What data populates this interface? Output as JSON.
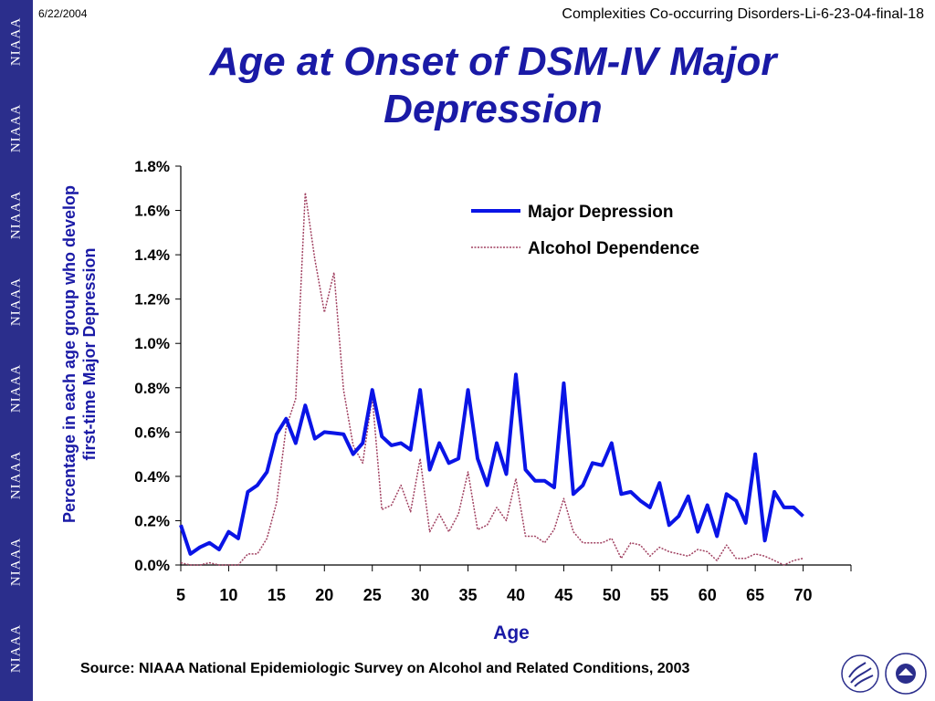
{
  "header": {
    "date": "6/22/2004",
    "slide_id": "Complexities Co-occurring Disorders-Li-6-23-04-final-18",
    "title_line1": "Age at Onset of DSM-IV Major",
    "title_line2": "Depression"
  },
  "sidebar": {
    "marks": [
      "NIAAA",
      "NIAAA",
      "NIAAA",
      "NIAAA",
      "NIAAA",
      "NIAAA",
      "NIAAA",
      "NIAAA"
    ],
    "color": "#2b2e8c"
  },
  "footer": {
    "source": "Source: NIAAA National Epidemiologic Survey on Alcohol and Related Conditions, 2003",
    "logos": [
      "hhs-eagle-logo",
      "nih-logo"
    ]
  },
  "chart_data": {
    "type": "line",
    "title": "",
    "xlabel": "Age",
    "ylabel_line1": "Percentage in each age group who develop",
    "ylabel_line2": "first-time Major Depression",
    "xlim": [
      5,
      75
    ],
    "ylim": [
      0,
      1.8
    ],
    "x_ticks": [
      "5",
      "10",
      "15",
      "20",
      "25",
      "30",
      "35",
      "40",
      "45",
      "50",
      "55",
      "60",
      "65",
      "70"
    ],
    "y_ticks": [
      "0.0%",
      "0.2%",
      "0.4%",
      "0.6%",
      "0.8%",
      "1.0%",
      "1.2%",
      "1.4%",
      "1.6%",
      "1.8%"
    ],
    "grid": false,
    "legend_position": "top-right",
    "x": [
      5,
      6,
      7,
      8,
      9,
      10,
      11,
      12,
      13,
      14,
      15,
      16,
      17,
      18,
      19,
      20,
      21,
      22,
      23,
      24,
      25,
      26,
      27,
      28,
      29,
      30,
      31,
      32,
      33,
      34,
      35,
      36,
      37,
      38,
      39,
      40,
      41,
      42,
      43,
      44,
      45,
      46,
      47,
      48,
      49,
      50,
      51,
      52,
      53,
      54,
      55,
      56,
      57,
      58,
      59,
      60,
      61,
      62,
      63,
      64,
      65,
      66,
      67,
      68,
      69,
      70
    ],
    "series": [
      {
        "name": "Major Depression",
        "color": "#0a14e6",
        "style": "solid",
        "values": [
          0.18,
          0.05,
          0.08,
          0.1,
          0.07,
          0.15,
          0.12,
          0.33,
          0.36,
          0.42,
          0.59,
          0.66,
          0.55,
          0.72,
          0.57,
          0.6,
          0.595,
          0.59,
          0.5,
          0.55,
          0.79,
          0.58,
          0.54,
          0.55,
          0.52,
          0.79,
          0.43,
          0.55,
          0.46,
          0.48,
          0.79,
          0.48,
          0.36,
          0.55,
          0.41,
          0.86,
          0.43,
          0.38,
          0.38,
          0.35,
          0.82,
          0.32,
          0.36,
          0.46,
          0.45,
          0.55,
          0.32,
          0.33,
          0.29,
          0.26,
          0.37,
          0.18,
          0.22,
          0.31,
          0.15,
          0.27,
          0.13,
          0.32,
          0.29,
          0.19,
          0.5,
          0.11,
          0.33,
          0.26,
          0.26,
          0.22
        ]
      },
      {
        "name": "Alcohol Dependence",
        "color": "#a04060",
        "style": "dotted",
        "values": [
          0.01,
          0.0,
          0.0,
          0.01,
          0.0,
          0.0,
          0.0,
          0.05,
          0.05,
          0.12,
          0.28,
          0.62,
          0.75,
          1.68,
          1.38,
          1.14,
          1.32,
          0.79,
          0.54,
          0.46,
          0.76,
          0.25,
          0.27,
          0.36,
          0.24,
          0.48,
          0.15,
          0.23,
          0.15,
          0.23,
          0.42,
          0.16,
          0.18,
          0.26,
          0.2,
          0.39,
          0.13,
          0.13,
          0.1,
          0.16,
          0.3,
          0.15,
          0.1,
          0.1,
          0.1,
          0.12,
          0.03,
          0.1,
          0.09,
          0.04,
          0.08,
          0.06,
          0.05,
          0.04,
          0.07,
          0.06,
          0.02,
          0.09,
          0.03,
          0.03,
          0.05,
          0.04,
          0.02,
          0.0,
          0.02,
          0.03
        ]
      }
    ]
  }
}
